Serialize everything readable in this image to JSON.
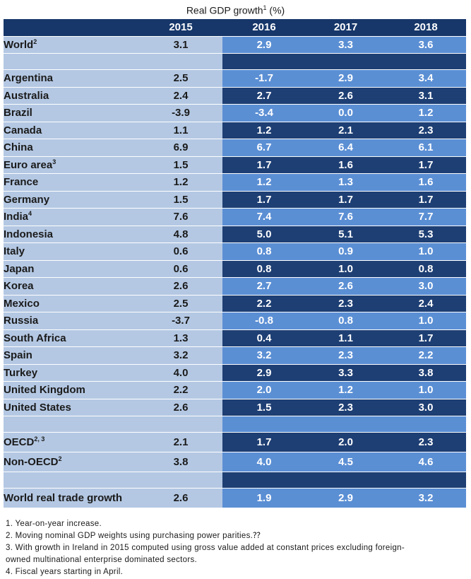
{
  "title": {
    "text": "Real GDP growth",
    "sup": "1",
    "unit": " (%)"
  },
  "headers": [
    "2015",
    "2016",
    "2017",
    "2018"
  ],
  "rows": [
    {
      "name": "World",
      "sup": "2",
      "values": [
        "3.1",
        "2.9",
        "3.3",
        "3.6"
      ],
      "style": "light"
    },
    {
      "spacer": true,
      "style": "dark"
    },
    {
      "name": "Argentina",
      "sup": "",
      "values": [
        "2.5",
        "-1.7",
        "2.9",
        "3.4"
      ],
      "style": "light"
    },
    {
      "name": "Australia",
      "sup": "",
      "values": [
        "2.4",
        "2.7",
        "2.6",
        "3.1"
      ],
      "style": "dark"
    },
    {
      "name": "Brazil",
      "sup": "",
      "values": [
        "-3.9",
        "-3.4",
        "0.0",
        "1.2"
      ],
      "style": "light"
    },
    {
      "name": "Canada",
      "sup": "",
      "values": [
        "1.1",
        "1.2",
        "2.1",
        "2.3"
      ],
      "style": "dark"
    },
    {
      "name": "China",
      "sup": "",
      "values": [
        "6.9",
        "6.7",
        "6.4",
        "6.1"
      ],
      "style": "light"
    },
    {
      "name": "Euro area",
      "sup": "3",
      "values": [
        "1.5",
        "1.7",
        "1.6",
        "1.7"
      ],
      "style": "dark"
    },
    {
      "name": "France",
      "sup": "",
      "values": [
        "1.2",
        "1.2",
        "1.3",
        "1.6"
      ],
      "style": "light"
    },
    {
      "name": "Germany",
      "sup": "",
      "values": [
        "1.5",
        "1.7",
        "1.7",
        "1.7"
      ],
      "style": "dark"
    },
    {
      "name": "India",
      "sup": "4",
      "values": [
        "7.6",
        "7.4",
        "7.6",
        "7.7"
      ],
      "style": "light"
    },
    {
      "name": "Indonesia",
      "sup": "",
      "values": [
        "4.8",
        "5.0",
        "5.1",
        "5.3"
      ],
      "style": "dark"
    },
    {
      "name": "Italy",
      "sup": "",
      "values": [
        "0.6",
        "0.8",
        "0.9",
        "1.0"
      ],
      "style": "light"
    },
    {
      "name": "Japan",
      "sup": "",
      "values": [
        "0.6",
        "0.8",
        "1.0",
        "0.8"
      ],
      "style": "dark"
    },
    {
      "name": "Korea",
      "sup": "",
      "values": [
        "2.6",
        "2.7",
        "2.6",
        "3.0"
      ],
      "style": "light"
    },
    {
      "name": "Mexico",
      "sup": "",
      "values": [
        "2.5",
        "2.2",
        "2.3",
        "2.4"
      ],
      "style": "dark"
    },
    {
      "name": "Russia",
      "sup": "",
      "values": [
        "-3.7",
        "-0.8",
        "0.8",
        "1.0"
      ],
      "style": "light"
    },
    {
      "name": "South Africa",
      "sup": "",
      "values": [
        "1.3",
        "0.4",
        "1.1",
        "1.7"
      ],
      "style": "dark"
    },
    {
      "name": "Spain",
      "sup": "",
      "values": [
        "3.2",
        "3.2",
        "2.3",
        "2.2"
      ],
      "style": "light"
    },
    {
      "name": "Turkey",
      "sup": "",
      "values": [
        "4.0",
        "2.9",
        "3.3",
        "3.8"
      ],
      "style": "dark"
    },
    {
      "name": "United Kingdom",
      "sup": "",
      "values": [
        "2.2",
        "2.0",
        "1.2",
        "1.0"
      ],
      "style": "light"
    },
    {
      "name": "United States",
      "sup": "",
      "values": [
        "2.6",
        "1.5",
        "2.3",
        "3.0"
      ],
      "style": "dark"
    },
    {
      "spacer": true,
      "style": "light"
    },
    {
      "name": "OECD",
      "sup": "2, 3",
      "values": [
        "2.1",
        "1.7",
        "2.0",
        "2.3"
      ],
      "style": "dark",
      "tall": true
    },
    {
      "name": "Non-OECD",
      "sup": "2",
      "values": [
        "3.8",
        "4.0",
        "4.5",
        "4.6"
      ],
      "style": "light",
      "tall": true
    },
    {
      "spacer": true,
      "style": "dark"
    },
    {
      "name": "World real trade growth",
      "sup": "",
      "values": [
        "2.6",
        "1.9",
        "2.9",
        "3.2"
      ],
      "style": "light",
      "tall": true
    }
  ],
  "notes": [
    "1. Year-on-year increase.",
    "2. Moving nominal GDP weights using purchasing power parities.⁇",
    "3. With growth in Ireland in 2015 computed using gross value added at constant prices excluding foreign-",
    "owned multinational enterprise dominated sectors.",
    "4. Fiscal years starting in April."
  ],
  "colors": {
    "header": "#17376a",
    "country_bg": "#b4c8e3",
    "dark": "#1e3f74",
    "light": "#5b8fd4"
  }
}
